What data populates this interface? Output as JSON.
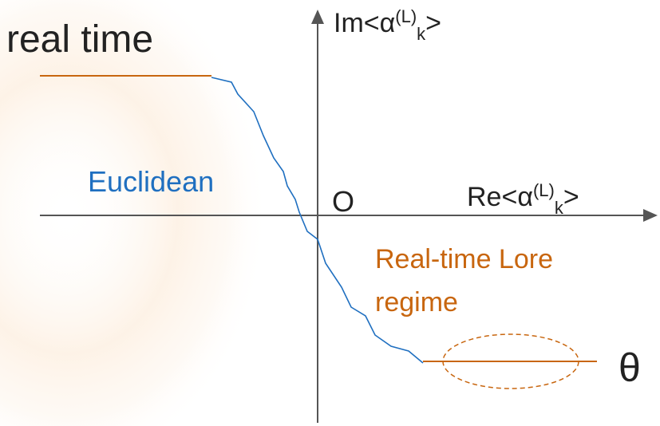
{
  "left_label": "real time",
  "im_axis": {
    "prefix": "Im<α",
    "sup": "(L)",
    "sub": "k",
    "suffix": ">"
  },
  "re_axis": {
    "prefix": "Re<α",
    "sup": "(L)",
    "sub": "k",
    "suffix": ">"
  },
  "origin": "O",
  "euclidean": "Euclidean",
  "lorentz_label": [
    "Real-time Lore",
    "regime"
  ],
  "theta": "θ"
}
